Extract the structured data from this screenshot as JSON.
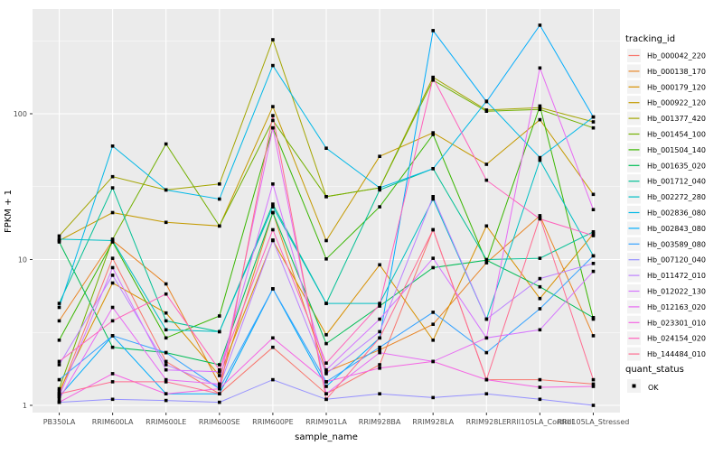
{
  "chart_data": {
    "type": "line",
    "title": "",
    "xlabel": "sample_name",
    "ylabel": "FPKM + 1",
    "y_scale": "log10",
    "y_ticks": [
      1,
      10,
      100
    ],
    "y_tick_labels": [
      "1",
      "10",
      "100"
    ],
    "y_minor_breaks": [
      3.162,
      31.62,
      316.2
    ],
    "ylim": [
      0.93,
      520
    ],
    "grid": "on",
    "legend_position": "right",
    "legend_title": "tracking_id",
    "quant_legend": {
      "title": "quant_status",
      "items": [
        "OK"
      ]
    },
    "point_shape": "filled-square",
    "point_color": "#000000",
    "panel_bg": "#EBEBEB",
    "grid_color": "#FFFFFF",
    "axis_text_color": "#4D4D4D",
    "legend_key_bg": "#F2F2F2",
    "categories": [
      "PB350LA",
      "RRIM600LA",
      "RRIM600LE",
      "RRIM600SE",
      "RRIM600PE",
      "RRIM901LA",
      "RRIM928BA",
      "RRIM928LA",
      "RRIM928LE",
      "RRII105LA_Control",
      "RRII105LA_Stressed"
    ],
    "series": [
      {
        "name": "Hb_000042_220",
        "color": "#F8766D",
        "values": [
          1.2,
          10.2,
          2.0,
          1.2,
          2.5,
          1.2,
          1.9,
          16,
          1.5,
          1.5,
          1.4
        ]
      },
      {
        "name": "Hb_000138_170",
        "color": "#E88526",
        "values": [
          3.8,
          13.5,
          6.8,
          1.4,
          21,
          1.7,
          2.4,
          3.6,
          9.5,
          20,
          3.0
        ]
      },
      {
        "name": "Hb_000179_120",
        "color": "#D89000",
        "values": [
          1.25,
          6.9,
          4.3,
          1.6,
          13.5,
          3.05,
          9.2,
          2.8,
          17,
          5.4,
          15
        ]
      },
      {
        "name": "Hb_000922_120",
        "color": "#C49A00",
        "values": [
          13.5,
          21,
          18,
          17,
          112,
          13.5,
          51,
          74,
          45,
          91,
          28
        ]
      },
      {
        "name": "Hb_001377_420",
        "color": "#A3A500",
        "values": [
          14.5,
          37,
          30,
          33,
          322,
          27,
          31,
          178,
          106,
          110,
          88
        ]
      },
      {
        "name": "Hb_001454_100",
        "color": "#72B000",
        "values": [
          1.3,
          13.8,
          62,
          17,
          90,
          27,
          31,
          170,
          104,
          107,
          80
        ]
      },
      {
        "name": "Hb_001504_140",
        "color": "#39B600",
        "values": [
          2.8,
          13.2,
          2.9,
          4.1,
          80,
          10.1,
          23,
          72,
          9.6,
          113,
          3.9
        ]
      },
      {
        "name": "Hb_001635_020",
        "color": "#00BC56",
        "values": [
          13.2,
          2.5,
          2.3,
          1.9,
          21,
          2.65,
          4.8,
          8.8,
          9.9,
          6.5,
          4.0
        ]
      },
      {
        "name": "Hb_001712_040",
        "color": "#00C094",
        "values": [
          5.0,
          31,
          3.8,
          3.2,
          24,
          5.0,
          30,
          42,
          10.0,
          10.2,
          15.5
        ]
      },
      {
        "name": "Hb_002272_280",
        "color": "#00BFC4",
        "values": [
          13.8,
          13.5,
          3.3,
          3.2,
          23,
          5.0,
          5.0,
          26,
          3.9,
          48,
          10.6
        ]
      },
      {
        "name": "Hb_002836_080",
        "color": "#00B8E7",
        "values": [
          4.7,
          60,
          30,
          26,
          214,
          58,
          31,
          42,
          122,
          50,
          95
        ]
      },
      {
        "name": "Hb_002843_080",
        "color": "#00ACFC",
        "values": [
          1.15,
          3.0,
          1.2,
          1.2,
          6.3,
          1.35,
          2.9,
          372,
          121,
          405,
          95
        ]
      },
      {
        "name": "Hb_003589_080",
        "color": "#35A2FF",
        "values": [
          1.5,
          3.0,
          2.3,
          1.3,
          6.3,
          1.45,
          2.5,
          4.35,
          2.3,
          4.6,
          10.6
        ]
      },
      {
        "name": "Hb_007120_040",
        "color": "#9590FF",
        "values": [
          1.05,
          1.1,
          1.08,
          1.05,
          1.5,
          1.1,
          1.2,
          1.13,
          1.2,
          1.1,
          1.0
        ]
      },
      {
        "name": "Hb_011472_010",
        "color": "#BC81FF",
        "values": [
          1.9,
          7.8,
          1.9,
          1.35,
          13.6,
          1.65,
          3.2,
          27,
          3.9,
          7.4,
          9.4
        ]
      },
      {
        "name": "Hb_012022_130",
        "color": "#D575FE",
        "values": [
          1.15,
          8.8,
          1.75,
          1.7,
          33,
          1.75,
          3.9,
          10.2,
          2.9,
          3.3,
          8.3
        ]
      },
      {
        "name": "Hb_012163_020",
        "color": "#E76BF3",
        "values": [
          1.1,
          4.7,
          1.5,
          1.4,
          80,
          1.2,
          2.3,
          2.0,
          2.9,
          206,
          22
        ]
      },
      {
        "name": "Hb_023301_010",
        "color": "#F564E3",
        "values": [
          1.05,
          1.65,
          1.2,
          1.3,
          2.9,
          1.45,
          1.8,
          2.0,
          1.5,
          1.33,
          1.35
        ]
      },
      {
        "name": "Hb_024154_020",
        "color": "#FF62BC",
        "values": [
          2.0,
          3.8,
          5.8,
          1.75,
          16,
          1.95,
          4.9,
          176,
          35,
          19,
          14.6
        ]
      },
      {
        "name": "Hb_144484_010",
        "color": "#FF6C90",
        "values": [
          1.2,
          1.45,
          1.45,
          1.2,
          97,
          1.1,
          2.9,
          16,
          1.5,
          19.5,
          1.5
        ]
      }
    ]
  }
}
